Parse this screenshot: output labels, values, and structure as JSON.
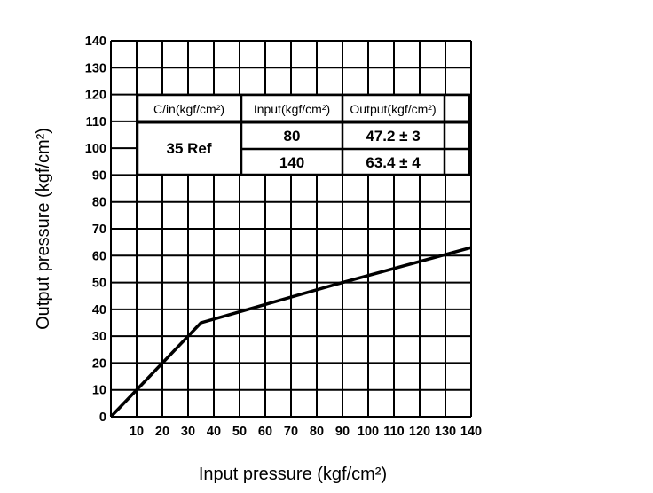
{
  "chart_data": {
    "type": "line",
    "xlabel": "Input pressure (kgf/cm²)",
    "ylabel": "Output pressure (kgf/cm²)",
    "xlim": [
      0,
      140
    ],
    "ylim": [
      0,
      140
    ],
    "x_ticks": [
      10,
      20,
      30,
      40,
      50,
      60,
      70,
      80,
      90,
      100,
      110,
      120,
      130,
      140
    ],
    "y_ticks": [
      0,
      10,
      20,
      30,
      40,
      50,
      60,
      70,
      80,
      90,
      100,
      110,
      120,
      130,
      140
    ],
    "grid": true,
    "series": [
      {
        "x": [
          0,
          35,
          90,
          140
        ],
        "y": [
          0,
          35,
          50,
          63
        ]
      }
    ],
    "table": {
      "headers": [
        "C/in(kgf/cm²)",
        "Input(kgf/cm²)",
        "Output(kgf/cm²)"
      ],
      "cutin": "35 Ref",
      "rows": [
        {
          "input": "80",
          "output": "47.2 ± 3"
        },
        {
          "input": "140",
          "output": "63.4 ± 4"
        }
      ]
    }
  }
}
